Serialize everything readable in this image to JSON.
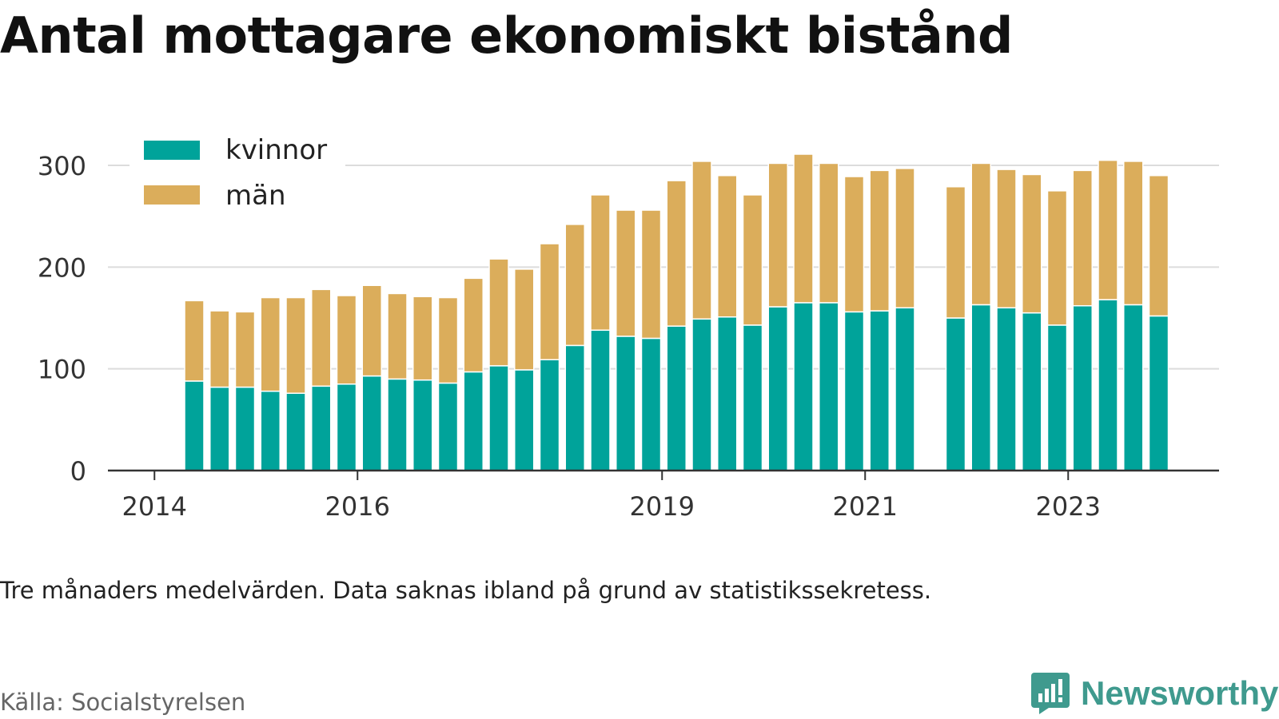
{
  "title": "Antal mottagare ekonomiskt bistånd",
  "note": "Tre månaders medelvärden. Data saknas ibland på grund av statistikssekretess.",
  "source": "Källa: Socialstyrelsen",
  "brand": {
    "name": "Newsworthy",
    "icon": "newsworthy-logo-icon",
    "color": "#3f9a8e"
  },
  "chart_data": {
    "type": "bar",
    "stacked": true,
    "title": "",
    "xlabel": "",
    "ylabel": "",
    "ylim": [
      0,
      310
    ],
    "yticks": [
      0,
      100,
      200,
      300
    ],
    "grid": true,
    "legend_position": "top-left",
    "x_tick_labels": [
      "2014",
      "2016",
      "2019",
      "2021",
      "2023"
    ],
    "categories": [
      "2014 Q2",
      "2014 Q3",
      "2014 Q4",
      "2015 Q1",
      "2015 Q2",
      "2015 Q3",
      "2015 Q4",
      "2016 Q1",
      "2016 Q2",
      "2016 Q3",
      "2016 Q4",
      "2017 Q1",
      "2017 Q2",
      "2017 Q3",
      "2017 Q4",
      "2018 Q1",
      "2018 Q2",
      "2018 Q3",
      "2018 Q4",
      "2019 Q1",
      "2019 Q2",
      "2019 Q3",
      "2019 Q4",
      "2020 Q1",
      "2020 Q2",
      "2020 Q3",
      "2020 Q4",
      "2021 Q1",
      "2021 Q2",
      "2021 Q3",
      "2021 Q4",
      "2022 Q1",
      "2022 Q2",
      "2022 Q3",
      "2022 Q4",
      "2023 Q1",
      "2023 Q2",
      "2023 Q3",
      "2023 Q4"
    ],
    "series": [
      {
        "name": "kvinnor",
        "color": "#00a39a",
        "values": [
          88,
          82,
          82,
          78,
          76,
          83,
          85,
          93,
          90,
          89,
          86,
          97,
          103,
          99,
          109,
          123,
          138,
          132,
          130,
          142,
          149,
          151,
          143,
          161,
          165,
          165,
          156,
          157,
          160,
          null,
          150,
          163,
          160,
          155,
          143,
          162,
          168,
          163,
          152
        ]
      },
      {
        "name": "män",
        "color": "#dbad5b",
        "values": [
          79,
          75,
          74,
          92,
          94,
          95,
          87,
          89,
          84,
          82,
          84,
          92,
          105,
          99,
          114,
          119,
          133,
          124,
          126,
          143,
          155,
          139,
          128,
          141,
          146,
          137,
          133,
          138,
          137,
          null,
          129,
          139,
          136,
          136,
          132,
          133,
          137,
          141,
          138
        ]
      }
    ]
  }
}
